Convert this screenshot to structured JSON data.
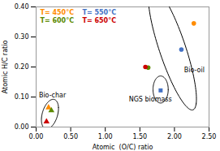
{
  "chart_data": {
    "type": "scatter",
    "xlabel": "Atomic  (O/C) ratio",
    "ylabel": "Atomic H/C ratio",
    "xlim": [
      0.0,
      2.5
    ],
    "ylim": [
      0.0,
      0.4
    ],
    "xticks": [
      {
        "value": 0.0,
        "label": "0.00"
      },
      {
        "value": 0.5,
        "label": "0.50"
      },
      {
        "value": 1.0,
        "label": "1.00"
      },
      {
        "value": 1.5,
        "label": "1.50"
      },
      {
        "value": 2.0,
        "label": "2.00"
      },
      {
        "value": 2.5,
        "label": "2.50"
      }
    ],
    "yticks": [
      {
        "value": 0.0,
        "label": "0.00"
      },
      {
        "value": 0.1,
        "label": "0.10"
      },
      {
        "value": 0.2,
        "label": "0.20"
      },
      {
        "value": 0.3,
        "label": "0.30"
      },
      {
        "value": 0.4,
        "label": "0.40"
      }
    ],
    "series": [
      {
        "name": "T= 450°C",
        "color": "#FF8C00",
        "x": [
          0.18,
          2.28
        ],
        "values": [
          0.065,
          0.345
        ],
        "markers": [
          "triangle",
          "circle"
        ]
      },
      {
        "name": "T= 550°C",
        "color": "#4472C4",
        "x": [
          1.8,
          2.1
        ],
        "values": [
          0.122,
          0.258
        ],
        "markers": [
          "square",
          "circle"
        ]
      },
      {
        "name": "T= 600°C",
        "color": "#5C8A00",
        "x": [
          0.22,
          1.62
        ],
        "values": [
          0.055,
          0.198
        ],
        "markers": [
          "triangle",
          "circle"
        ]
      },
      {
        "name": "T= 650°C",
        "color": "#CC0000",
        "x": [
          0.15,
          1.58
        ],
        "values": [
          0.018,
          0.2
        ],
        "markers": [
          "triangle",
          "circle"
        ]
      }
    ],
    "ellipses": [
      {
        "label": "Bio-char",
        "cx": 0.2,
        "cy": 0.043,
        "width": 0.25,
        "height": 0.09,
        "angle": 10,
        "label_x": 0.04,
        "label_y": 0.115
      },
      {
        "label": "NGS biomass",
        "cx": 1.8,
        "cy": 0.125,
        "width": 0.22,
        "height": 0.09,
        "angle": 0,
        "label_x": 1.34,
        "label_y": 0.1
      },
      {
        "label": "Bio-oil",
        "cx": 1.97,
        "cy": 0.262,
        "width": 0.78,
        "height": 0.21,
        "angle": -28,
        "label_x": 2.14,
        "label_y": 0.197
      }
    ],
    "legend": "upper left"
  }
}
